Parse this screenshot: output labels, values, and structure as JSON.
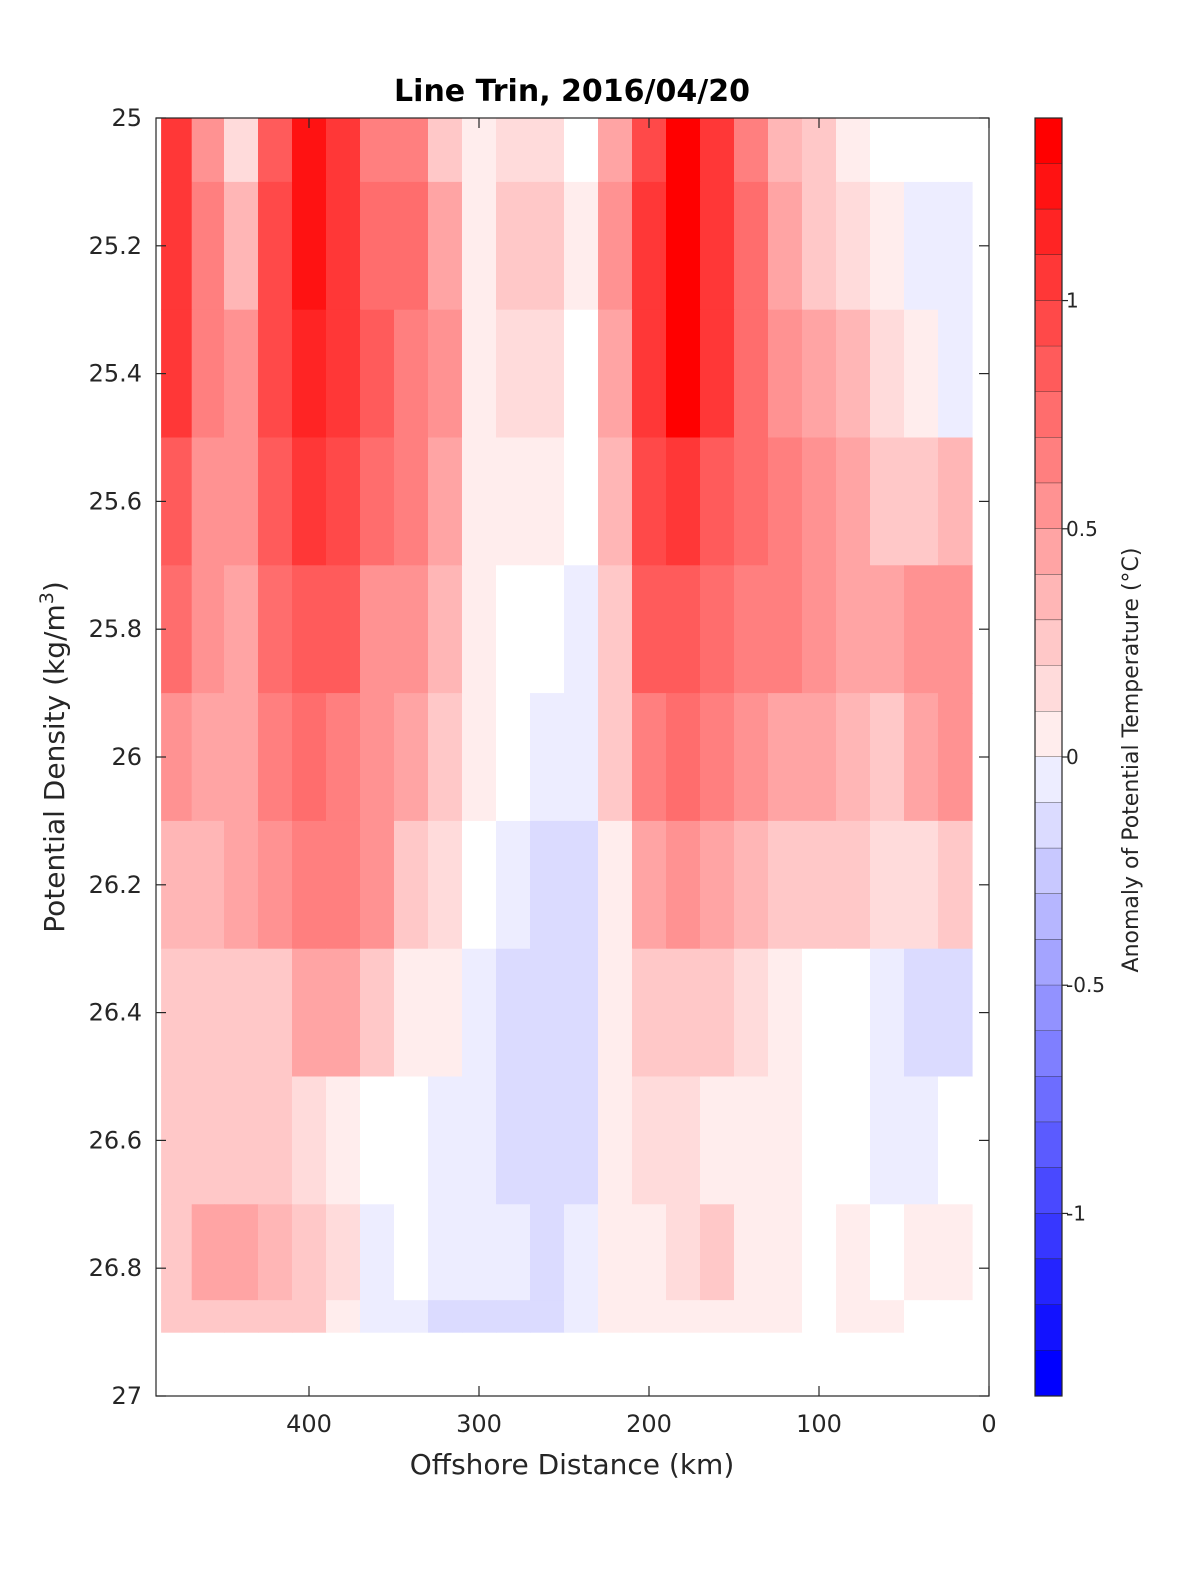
{
  "chart_data": {
    "type": "heatmap",
    "subtype": "filled-contour",
    "title": "Line Trin, 2016/04/20",
    "xlabel": "Offshore Distance (km)",
    "ylabel_parts": {
      "before": "Potential Density (kg/m",
      "sup": "3",
      "after": ")"
    },
    "xlim": [
      490,
      0
    ],
    "x_reversed": true,
    "ylim": [
      25,
      27
    ],
    "y_reversed": true,
    "x_ticks": [
      {
        "value": 400,
        "label": "400"
      },
      {
        "value": 300,
        "label": "300"
      },
      {
        "value": 200,
        "label": "200"
      },
      {
        "value": 100,
        "label": "100"
      },
      {
        "value": 0,
        "label": "0"
      }
    ],
    "y_ticks": [
      {
        "value": 25,
        "label": "25"
      },
      {
        "value": 25.2,
        "label": "25.2"
      },
      {
        "value": 25.4,
        "label": "25.4"
      },
      {
        "value": 25.6,
        "label": "25.6"
      },
      {
        "value": 25.8,
        "label": "25.8"
      },
      {
        "value": 26,
        "label": "26"
      },
      {
        "value": 26.2,
        "label": "26.2"
      },
      {
        "value": 26.4,
        "label": "26.4"
      },
      {
        "value": 26.6,
        "label": "26.6"
      },
      {
        "value": 26.8,
        "label": "26.8"
      },
      {
        "value": 27,
        "label": "27"
      }
    ],
    "grid": false,
    "colorbar": {
      "label": "Anomaly of Potential Temperature (°C)",
      "range": [
        -1.4,
        1.4
      ],
      "level_step": 0.1,
      "low_color": "#0000ff",
      "mid_color": "#ffffff",
      "high_color": "#ff0000",
      "ticks": [
        {
          "value": 1,
          "label": "1"
        },
        {
          "value": 0.5,
          "label": "0.5"
        },
        {
          "value": 0,
          "label": "0"
        },
        {
          "value": -0.5,
          "label": "-0.5"
        },
        {
          "value": -1,
          "label": "-1"
        }
      ]
    },
    "grid_data": {
      "x": [
        478,
        460,
        440,
        420,
        400,
        380,
        360,
        340,
        320,
        300,
        280,
        260,
        240,
        220,
        200,
        180,
        160,
        140,
        120,
        100,
        80,
        60,
        40,
        20
      ],
      "y": [
        25.0,
        25.2,
        25.4,
        25.6,
        25.8,
        26.0,
        26.2,
        26.4,
        26.6,
        26.8,
        26.9
      ],
      "values": [
        [
          1.1,
          0.6,
          0.2,
          0.9,
          1.25,
          1.1,
          0.7,
          0.7,
          0.35,
          0.1,
          0.2,
          0.2,
          0.0,
          0.5,
          1.0,
          1.4,
          1.1,
          0.7,
          0.4,
          0.25,
          0.1,
          0.0,
          -0.05,
          -0.05
        ],
        [
          1.1,
          0.65,
          0.4,
          1.0,
          1.3,
          1.15,
          0.8,
          0.75,
          0.5,
          0.1,
          0.25,
          0.25,
          0.05,
          0.55,
          1.1,
          1.4,
          1.1,
          0.75,
          0.5,
          0.35,
          0.2,
          0.05,
          -0.1,
          -0.1
        ],
        [
          1.15,
          0.65,
          0.55,
          1.0,
          1.2,
          1.1,
          0.9,
          0.7,
          0.55,
          0.1,
          0.2,
          0.2,
          0.0,
          0.5,
          1.1,
          1.35,
          1.05,
          0.75,
          0.6,
          0.5,
          0.4,
          0.2,
          0.05,
          -0.15
        ],
        [
          0.95,
          0.6,
          0.55,
          0.9,
          1.05,
          1.0,
          0.8,
          0.65,
          0.5,
          0.1,
          0.15,
          0.15,
          0.0,
          0.4,
          1.0,
          1.15,
          0.9,
          0.75,
          0.65,
          0.55,
          0.5,
          0.35,
          0.35,
          0.4
        ],
        [
          0.75,
          0.55,
          0.5,
          0.8,
          0.95,
          0.9,
          0.6,
          0.55,
          0.4,
          0.05,
          0.0,
          0.0,
          -0.1,
          0.3,
          0.85,
          0.95,
          0.8,
          0.65,
          0.65,
          0.55,
          0.5,
          0.45,
          0.55,
          0.6
        ],
        [
          0.6,
          0.5,
          0.45,
          0.7,
          0.75,
          0.7,
          0.55,
          0.45,
          0.3,
          0.05,
          -0.05,
          -0.1,
          -0.15,
          0.25,
          0.7,
          0.8,
          0.65,
          0.55,
          0.5,
          0.5,
          0.4,
          0.35,
          0.5,
          0.55
        ],
        [
          0.4,
          0.4,
          0.45,
          0.55,
          0.65,
          0.65,
          0.55,
          0.25,
          0.2,
          0.0,
          -0.1,
          -0.2,
          -0.25,
          0.1,
          0.5,
          0.55,
          0.5,
          0.4,
          0.35,
          0.35,
          0.3,
          0.2,
          0.2,
          0.25
        ],
        [
          0.25,
          0.35,
          0.35,
          0.35,
          0.5,
          0.45,
          0.35,
          0.1,
          0.05,
          -0.1,
          -0.2,
          -0.25,
          -0.2,
          0.05,
          0.3,
          0.3,
          0.25,
          0.2,
          0.1,
          0.0,
          -0.05,
          -0.15,
          -0.25,
          -0.2
        ],
        [
          0.3,
          0.35,
          0.3,
          0.25,
          0.2,
          0.1,
          -0.05,
          -0.05,
          -0.1,
          -0.15,
          -0.2,
          -0.25,
          -0.2,
          0.05,
          0.2,
          0.2,
          0.15,
          0.15,
          0.05,
          0.0,
          -0.05,
          -0.1,
          -0.15,
          -0.05
        ],
        [
          0.3,
          0.45,
          0.45,
          0.4,
          0.35,
          0.2,
          -0.1,
          -0.05,
          -0.1,
          -0.15,
          -0.15,
          -0.2,
          -0.15,
          0.05,
          0.15,
          0.2,
          0.25,
          0.15,
          0.05,
          0.0,
          0.05,
          0.0,
          0.05,
          0.05
        ],
        [
          0.3,
          0.35,
          0.35,
          0.3,
          0.25,
          0.15,
          -0.15,
          -0.15,
          -0.2,
          -0.25,
          -0.25,
          -0.2,
          -0.15,
          0.05,
          0.1,
          0.15,
          0.1,
          0.05,
          0.05,
          0.0,
          0.05,
          0.1,
          0.0,
          0.0
        ]
      ]
    }
  }
}
